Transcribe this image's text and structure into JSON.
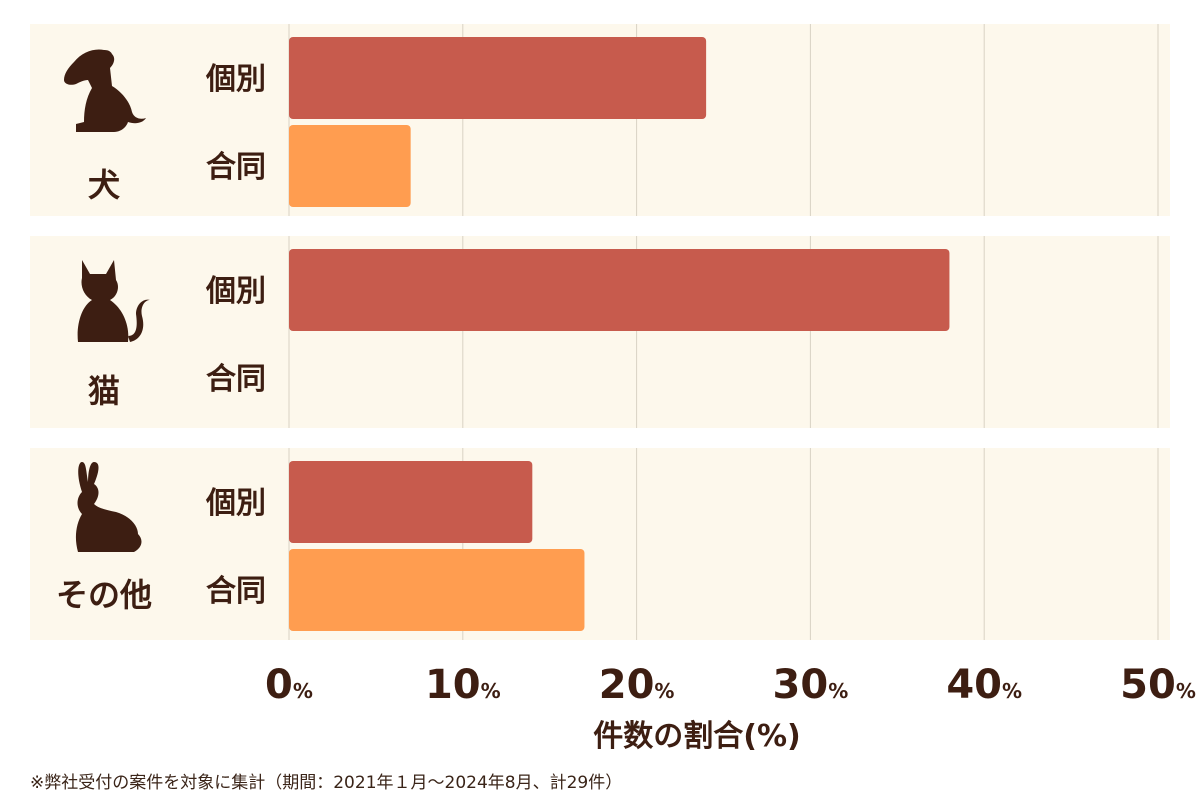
{
  "chart_data": {
    "type": "bar",
    "orientation": "horizontal",
    "groups": [
      {
        "label": "犬",
        "icon": "dog-icon"
      },
      {
        "label": "猫",
        "icon": "cat-icon"
      },
      {
        "label": "その他",
        "icon": "rabbit-icon"
      }
    ],
    "series": [
      {
        "name": "個別",
        "values": [
          24,
          38,
          14
        ],
        "color": "#c75b4d"
      },
      {
        "name": "合同",
        "values": [
          7,
          0,
          17
        ],
        "color": "#ff9d50"
      }
    ],
    "xticks": [
      "0",
      "10",
      "20",
      "30",
      "40",
      "50"
    ],
    "tick_unit": "%",
    "xlabel": "件数の割合(%)",
    "xlim": [
      0,
      50
    ],
    "grid": true,
    "panel_color": "#fdf8ec",
    "text_color": "#3d1e12"
  },
  "footnote": "※弊社受付の案件を対象に集計（期間：2021年１月〜2024年8月、計29件）"
}
